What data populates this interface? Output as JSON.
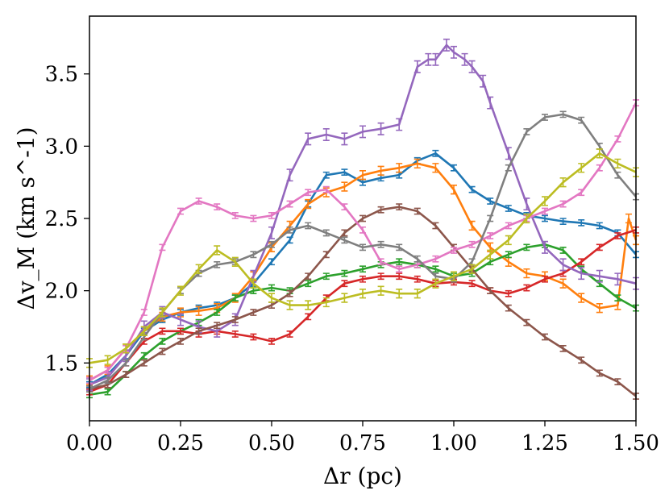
{
  "chart_data": {
    "type": "line",
    "title": "",
    "xlabel": "Δr (pc)",
    "ylabel": "Δv_M (km s^-1)",
    "xlim": [
      0.0,
      1.5
    ],
    "ylim": [
      1.1,
      3.9
    ],
    "grid": false,
    "legend": "none",
    "x_ticks": [
      0.0,
      0.25,
      0.5,
      0.75,
      1.0,
      1.25,
      1.5
    ],
    "x_tick_labels": [
      "0.00",
      "0.25",
      "0.50",
      "0.75",
      "1.00",
      "1.25",
      "1.50"
    ],
    "y_ticks": [
      1.5,
      2.0,
      2.5,
      3.0,
      3.5
    ],
    "y_tick_labels": [
      "1.5",
      "2.0",
      "2.5",
      "3.0",
      "3.5"
    ],
    "series": [
      {
        "name": "blue",
        "color": "#1f77b4",
        "x": [
          0.0,
          0.05,
          0.1,
          0.15,
          0.2,
          0.25,
          0.3,
          0.35,
          0.4,
          0.45,
          0.5,
          0.55,
          0.6,
          0.65,
          0.7,
          0.75,
          0.8,
          0.85,
          0.9,
          0.95,
          1.0,
          1.05,
          1.1,
          1.15,
          1.2,
          1.25,
          1.3,
          1.35,
          1.4,
          1.45,
          1.5
        ],
        "y": [
          1.35,
          1.42,
          1.55,
          1.72,
          1.8,
          1.85,
          1.88,
          1.9,
          1.95,
          2.05,
          2.2,
          2.35,
          2.6,
          2.8,
          2.82,
          2.75,
          2.78,
          2.8,
          2.9,
          2.95,
          2.85,
          2.7,
          2.62,
          2.57,
          2.52,
          2.5,
          2.48,
          2.47,
          2.45,
          2.4,
          2.25
        ],
        "error": 0.02
      },
      {
        "name": "orange",
        "color": "#ff7f0e",
        "x": [
          0.0,
          0.05,
          0.1,
          0.15,
          0.2,
          0.25,
          0.3,
          0.35,
          0.4,
          0.45,
          0.5,
          0.55,
          0.6,
          0.65,
          0.7,
          0.75,
          0.8,
          0.85,
          0.9,
          0.95,
          1.0,
          1.05,
          1.1,
          1.15,
          1.2,
          1.25,
          1.3,
          1.35,
          1.4,
          1.45,
          1.48,
          1.5
        ],
        "y": [
          1.38,
          1.45,
          1.6,
          1.72,
          1.82,
          1.85,
          1.86,
          1.88,
          1.95,
          2.1,
          2.3,
          2.45,
          2.6,
          2.68,
          2.72,
          2.8,
          2.83,
          2.85,
          2.88,
          2.85,
          2.7,
          2.45,
          2.3,
          2.2,
          2.12,
          2.1,
          2.05,
          1.95,
          1.88,
          1.9,
          2.5,
          2.35
        ],
        "error": 0.03
      },
      {
        "name": "green",
        "color": "#2ca02c",
        "x": [
          0.0,
          0.05,
          0.1,
          0.15,
          0.2,
          0.25,
          0.3,
          0.35,
          0.4,
          0.45,
          0.5,
          0.55,
          0.6,
          0.65,
          0.7,
          0.75,
          0.8,
          0.85,
          0.9,
          0.95,
          1.0,
          1.05,
          1.1,
          1.15,
          1.2,
          1.25,
          1.3,
          1.35,
          1.4,
          1.45,
          1.5
        ],
        "y": [
          1.28,
          1.3,
          1.42,
          1.55,
          1.65,
          1.72,
          1.78,
          1.85,
          1.95,
          2.0,
          2.02,
          2.0,
          2.05,
          2.1,
          2.12,
          2.15,
          2.18,
          2.2,
          2.18,
          2.15,
          2.1,
          2.12,
          2.2,
          2.25,
          2.3,
          2.32,
          2.28,
          2.15,
          2.05,
          1.95,
          1.88
        ],
        "error": 0.02
      },
      {
        "name": "red",
        "color": "#d62728",
        "x": [
          0.0,
          0.05,
          0.1,
          0.15,
          0.2,
          0.25,
          0.3,
          0.35,
          0.4,
          0.45,
          0.5,
          0.55,
          0.6,
          0.65,
          0.7,
          0.75,
          0.8,
          0.85,
          0.9,
          0.95,
          1.0,
          1.05,
          1.1,
          1.15,
          1.2,
          1.25,
          1.3,
          1.35,
          1.4,
          1.45,
          1.5
        ],
        "y": [
          1.3,
          1.35,
          1.5,
          1.65,
          1.72,
          1.72,
          1.7,
          1.72,
          1.7,
          1.68,
          1.65,
          1.7,
          1.82,
          1.95,
          2.05,
          2.08,
          2.1,
          2.1,
          2.08,
          2.05,
          2.06,
          2.05,
          2.0,
          1.98,
          2.02,
          2.08,
          2.12,
          2.2,
          2.3,
          2.38,
          2.42
        ],
        "error": 0.02
      },
      {
        "name": "purple",
        "color": "#9467bd",
        "x": [
          0.0,
          0.05,
          0.1,
          0.15,
          0.2,
          0.25,
          0.3,
          0.35,
          0.4,
          0.45,
          0.5,
          0.55,
          0.6,
          0.65,
          0.7,
          0.75,
          0.8,
          0.85,
          0.9,
          0.93,
          0.95,
          0.98,
          1.0,
          1.03,
          1.05,
          1.08,
          1.1,
          1.15,
          1.2,
          1.25,
          1.3,
          1.35,
          1.4,
          1.45,
          1.5
        ],
        "y": [
          1.35,
          1.4,
          1.55,
          1.75,
          1.85,
          1.8,
          1.75,
          1.72,
          1.8,
          2.1,
          2.4,
          2.8,
          3.05,
          3.08,
          3.05,
          3.1,
          3.12,
          3.15,
          3.55,
          3.6,
          3.6,
          3.7,
          3.65,
          3.6,
          3.55,
          3.45,
          3.3,
          2.95,
          2.6,
          2.3,
          2.18,
          2.12,
          2.1,
          2.08,
          2.05
        ],
        "error": 0.04
      },
      {
        "name": "brown",
        "color": "#8c564b",
        "x": [
          0.0,
          0.05,
          0.1,
          0.15,
          0.2,
          0.25,
          0.3,
          0.35,
          0.4,
          0.45,
          0.5,
          0.55,
          0.6,
          0.65,
          0.7,
          0.75,
          0.8,
          0.85,
          0.9,
          0.95,
          1.0,
          1.05,
          1.1,
          1.15,
          1.2,
          1.25,
          1.3,
          1.35,
          1.4,
          1.45,
          1.5
        ],
        "y": [
          1.32,
          1.35,
          1.42,
          1.5,
          1.58,
          1.65,
          1.72,
          1.76,
          1.8,
          1.85,
          1.9,
          1.98,
          2.1,
          2.25,
          2.4,
          2.5,
          2.56,
          2.58,
          2.55,
          2.45,
          2.3,
          2.15,
          2.0,
          1.88,
          1.78,
          1.68,
          1.6,
          1.52,
          1.43,
          1.37,
          1.27
        ],
        "error": 0.02
      },
      {
        "name": "pink",
        "color": "#e377c2",
        "x": [
          0.0,
          0.05,
          0.1,
          0.15,
          0.2,
          0.25,
          0.3,
          0.35,
          0.4,
          0.45,
          0.5,
          0.55,
          0.6,
          0.65,
          0.7,
          0.75,
          0.8,
          0.85,
          0.9,
          0.95,
          1.0,
          1.05,
          1.1,
          1.15,
          1.2,
          1.25,
          1.3,
          1.35,
          1.4,
          1.45,
          1.5
        ],
        "y": [
          1.38,
          1.45,
          1.6,
          1.85,
          2.3,
          2.55,
          2.62,
          2.58,
          2.52,
          2.5,
          2.52,
          2.6,
          2.68,
          2.7,
          2.58,
          2.42,
          2.2,
          2.15,
          2.18,
          2.22,
          2.28,
          2.32,
          2.38,
          2.45,
          2.5,
          2.55,
          2.6,
          2.68,
          2.85,
          3.05,
          3.3
        ],
        "error": 0.02
      },
      {
        "name": "gray",
        "color": "#7f7f7f",
        "x": [
          0.0,
          0.05,
          0.1,
          0.15,
          0.2,
          0.25,
          0.3,
          0.35,
          0.4,
          0.45,
          0.5,
          0.55,
          0.6,
          0.65,
          0.7,
          0.75,
          0.8,
          0.85,
          0.9,
          0.95,
          1.0,
          1.05,
          1.1,
          1.15,
          1.2,
          1.25,
          1.3,
          1.35,
          1.4,
          1.45,
          1.5
        ],
        "y": [
          1.32,
          1.38,
          1.5,
          1.68,
          1.85,
          2.0,
          2.12,
          2.18,
          2.2,
          2.25,
          2.32,
          2.42,
          2.45,
          2.4,
          2.35,
          2.3,
          2.32,
          2.3,
          2.22,
          2.1,
          2.08,
          2.2,
          2.5,
          2.85,
          3.1,
          3.2,
          3.22,
          3.18,
          3.0,
          2.8,
          2.65
        ],
        "error": 0.02
      },
      {
        "name": "olive",
        "color": "#bcbd22",
        "x": [
          0.0,
          0.05,
          0.1,
          0.15,
          0.2,
          0.25,
          0.3,
          0.35,
          0.4,
          0.45,
          0.5,
          0.55,
          0.6,
          0.65,
          0.7,
          0.75,
          0.8,
          0.85,
          0.9,
          0.95,
          1.0,
          1.05,
          1.1,
          1.15,
          1.2,
          1.25,
          1.3,
          1.35,
          1.4,
          1.45,
          1.5
        ],
        "y": [
          1.5,
          1.52,
          1.6,
          1.72,
          1.85,
          2.0,
          2.15,
          2.28,
          2.2,
          2.05,
          1.95,
          1.9,
          1.9,
          1.92,
          1.95,
          1.98,
          2.0,
          1.98,
          1.98,
          2.05,
          2.1,
          2.15,
          2.25,
          2.35,
          2.5,
          2.62,
          2.75,
          2.85,
          2.95,
          2.88,
          2.82
        ],
        "error": 0.03
      }
    ]
  }
}
